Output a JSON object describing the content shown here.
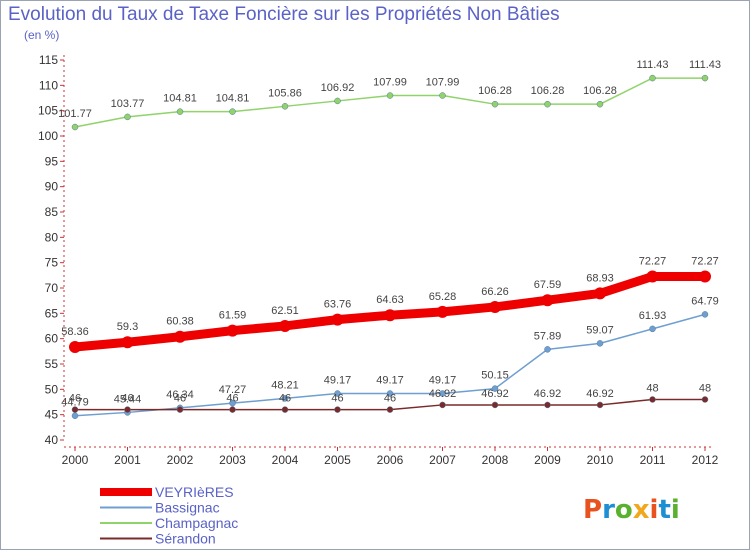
{
  "title": "Evolution du Taux de Taxe Foncière sur les Propriétés Non Bâties",
  "subtitle": "(en %)",
  "logo": {
    "text": "Proxiti",
    "colors": [
      "#e8521f",
      "#1f8fd3",
      "#59b22f",
      "#f2a81d",
      "#e8521f",
      "#1f8fd3",
      "#59b22f"
    ]
  },
  "chart_data": {
    "type": "line",
    "x": [
      2000,
      2001,
      2002,
      2003,
      2004,
      2005,
      2006,
      2007,
      2008,
      2009,
      2010,
      2011,
      2012
    ],
    "ylim": [
      40,
      115
    ],
    "yticks": [
      40,
      45,
      50,
      55,
      60,
      65,
      70,
      75,
      80,
      85,
      90,
      95,
      100,
      105,
      110,
      115
    ],
    "grid": false,
    "legend_position": "bottom-left",
    "series": [
      {
        "name": "VEYRIèRES",
        "color": "#ee0000",
        "width": 9,
        "values": [
          58.36,
          59.3,
          60.38,
          61.59,
          62.51,
          63.76,
          64.63,
          65.28,
          66.26,
          67.59,
          68.93,
          72.27,
          72.27
        ],
        "labels": [
          "58.36",
          "59.3",
          "60.38",
          "61.59",
          "62.51",
          "63.76",
          "64.63",
          "65.28",
          "66.26",
          "67.59",
          "68.93",
          "72.27",
          "72.27"
        ]
      },
      {
        "name": "Bassignac",
        "color": "#6f9fd0",
        "width": 1.5,
        "values": [
          44.79,
          45.44,
          46.34,
          47.27,
          48.21,
          49.17,
          49.17,
          49.17,
          50.15,
          57.89,
          59.07,
          61.93,
          64.79
        ],
        "labels": [
          "44.79",
          "45.44",
          "46.34",
          "47.27",
          "48.21",
          "49.17",
          "49.17",
          "49.17",
          "50.15",
          "57.89",
          "59.07",
          "61.93",
          "64.79"
        ]
      },
      {
        "name": "Champagnac",
        "color": "#8fd36a",
        "width": 1.5,
        "values": [
          101.77,
          103.77,
          104.81,
          104.81,
          105.86,
          106.92,
          107.99,
          107.99,
          106.28,
          106.28,
          106.28,
          111.43,
          111.43
        ],
        "labels": [
          "101.77",
          "103.77",
          "104.81",
          "104.81",
          "105.86",
          "106.92",
          "107.99",
          "107.99",
          "106.28",
          "106.28",
          "106.28",
          "111.43",
          "111.43"
        ]
      },
      {
        "name": "Sérandon",
        "color": "#7b2a2a",
        "width": 1.5,
        "values": [
          46,
          46,
          46,
          46,
          46,
          46,
          46,
          46.92,
          46.92,
          46.92,
          46.92,
          48,
          48
        ],
        "labels": [
          "46",
          "46",
          "46",
          "46",
          "46",
          "46",
          "46",
          "46.92",
          "46.92",
          "46.92",
          "46.92",
          "48",
          "48"
        ]
      }
    ]
  }
}
